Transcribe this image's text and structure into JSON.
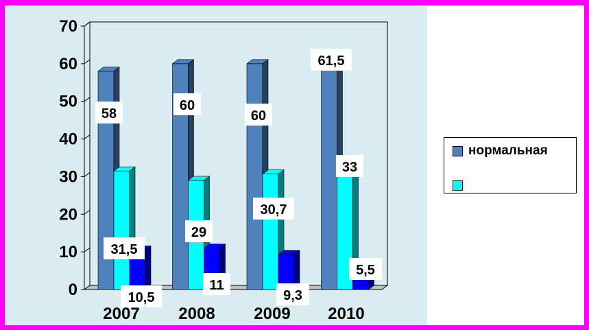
{
  "chart_data": {
    "type": "bar",
    "categories": [
      "2007",
      "2008",
      "2009",
      "2010"
    ],
    "series": [
      {
        "name": "нормальная",
        "values": [
          58,
          60,
          60,
          61.5
        ],
        "labels": [
          "58",
          "60",
          "60",
          "61,5"
        ],
        "color": "#4f81bd"
      },
      {
        "name": "",
        "values": [
          31.5,
          29,
          30.7,
          33
        ],
        "labels": [
          "31,5",
          "29",
          "30,7",
          "33"
        ],
        "color": "#00ffff"
      },
      {
        "name": "",
        "values": [
          10.5,
          11,
          9.3,
          5.5
        ],
        "labels": [
          "10,5",
          "11",
          "9,3",
          "5,5"
        ],
        "color": "#0000ff"
      }
    ],
    "ylim": [
      0,
      70
    ],
    "yticks": [
      "0",
      "10",
      "20",
      "30",
      "40",
      "50",
      "60",
      "70"
    ],
    "grid": true,
    "legend_position": "right",
    "title": "",
    "xlabel": "",
    "ylabel": ""
  }
}
